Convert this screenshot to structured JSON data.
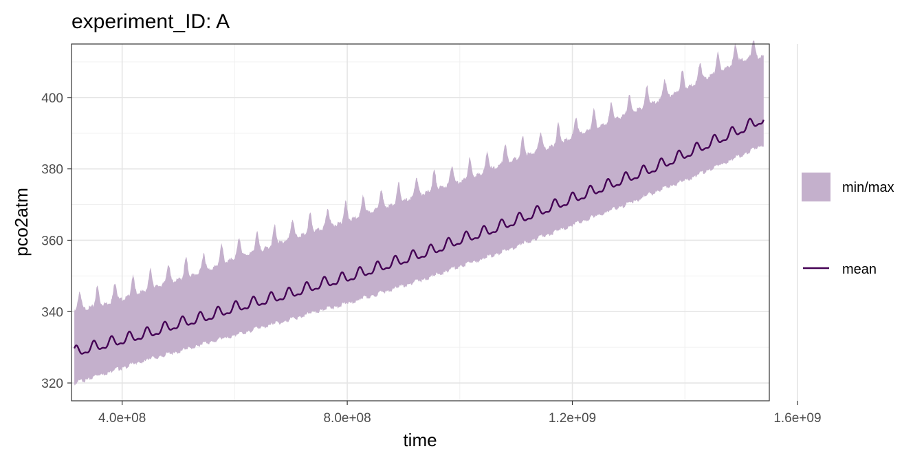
{
  "chart_data": {
    "type": "area",
    "title": "experiment_ID: A",
    "xlabel": "time",
    "ylabel": "pco2atm",
    "xlim": [
      310000000,
      1550000000
    ],
    "ylim": [
      315,
      415
    ],
    "x_ticks": [
      400000000,
      800000000,
      1200000000,
      1600000000
    ],
    "x_tick_labels": [
      "4.0e+08",
      "8.0e+08",
      "1.2e+09",
      "1.6e+09"
    ],
    "y_ticks": [
      320,
      340,
      360,
      380,
      400
    ],
    "y_tick_labels": [
      "320",
      "340",
      "360",
      "380",
      "400"
    ],
    "grid": true,
    "legend_position": "right",
    "colors": {
      "band": "#c4b0cc",
      "line": "#440154"
    },
    "series": [
      {
        "name": "min/max",
        "kind": "ribbon",
        "x": [
          315000000,
          350000000,
          400000000,
          450000000,
          500000000,
          550000000,
          600000000,
          650000000,
          700000000,
          750000000,
          800000000,
          850000000,
          900000000,
          950000000,
          1000000000,
          1050000000,
          1100000000,
          1150000000,
          1200000000,
          1250000000,
          1300000000,
          1350000000,
          1400000000,
          1450000000,
          1500000000,
          1540000000
        ],
        "min": [
          320.0,
          322.0,
          324.5,
          327.0,
          329.0,
          331.5,
          333.5,
          336.0,
          338.0,
          340.5,
          342.5,
          345.0,
          347.5,
          350.0,
          353.0,
          355.5,
          358.5,
          361.5,
          364.5,
          367.5,
          370.5,
          374.0,
          377.0,
          380.5,
          384.0,
          387.0
        ],
        "max": [
          341.5,
          343.0,
          345.0,
          348.0,
          350.5,
          353.0,
          356.5,
          359.0,
          362.0,
          364.5,
          367.0,
          370.0,
          372.5,
          375.5,
          378.0,
          381.0,
          384.5,
          387.0,
          390.5,
          393.5,
          397.0,
          400.5,
          404.0,
          408.0,
          412.0,
          413.0
        ]
      },
      {
        "name": "mean",
        "kind": "line",
        "x": [
          315000000,
          350000000,
          400000000,
          450000000,
          500000000,
          550000000,
          600000000,
          650000000,
          700000000,
          750000000,
          800000000,
          850000000,
          900000000,
          950000000,
          1000000000,
          1050000000,
          1100000000,
          1150000000,
          1200000000,
          1250000000,
          1300000000,
          1350000000,
          1400000000,
          1450000000,
          1500000000,
          1540000000
        ],
        "y": [
          328.5,
          330.0,
          332.0,
          334.0,
          336.5,
          338.5,
          341.0,
          343.0,
          345.0,
          347.5,
          349.5,
          352.0,
          354.5,
          357.0,
          360.0,
          362.5,
          365.5,
          368.5,
          371.5,
          374.5,
          377.5,
          380.5,
          384.0,
          387.5,
          391.0,
          394.0
        ]
      }
    ],
    "seasonal": {
      "period": 31500000,
      "mean_amp": 1.9,
      "min_amp": 1.0,
      "max_amp": 3.3
    }
  }
}
